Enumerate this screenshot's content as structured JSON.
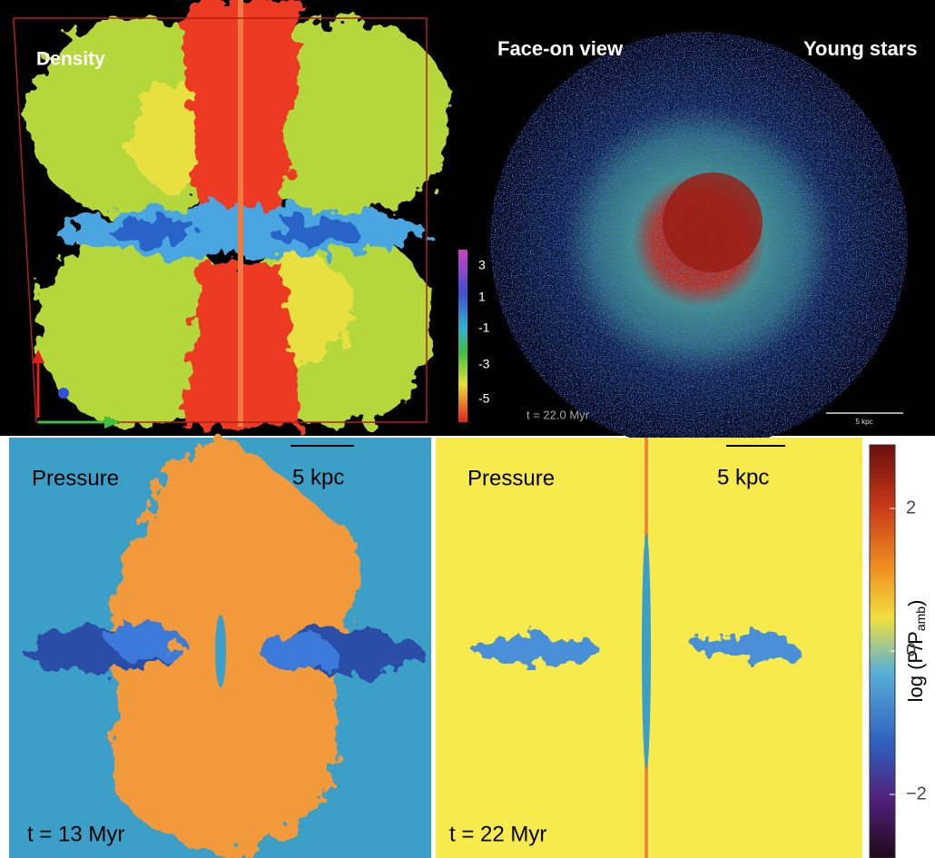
{
  "top_left": {
    "title": "Density",
    "colorbar_ticks": [
      "3",
      "1",
      "-1",
      "-3",
      "-5"
    ]
  },
  "top_right": {
    "title": "Face-on view",
    "subtitle": "Young stars",
    "time": "t =  22.0 Myr",
    "scale": "5 kpc"
  },
  "bottom_left": {
    "title": "Pressure",
    "scale": "5 kpc",
    "time": "t = 13 Myr"
  },
  "bottom_right": {
    "title": "Pressure",
    "scale": "5 kpc",
    "time": "t = 22 Myr"
  },
  "colorbar": {
    "label": {
      "main": "log (P/P",
      "sub": "amb",
      "close": ")"
    },
    "ticks": [
      "2",
      "0",
      "−2"
    ]
  }
}
